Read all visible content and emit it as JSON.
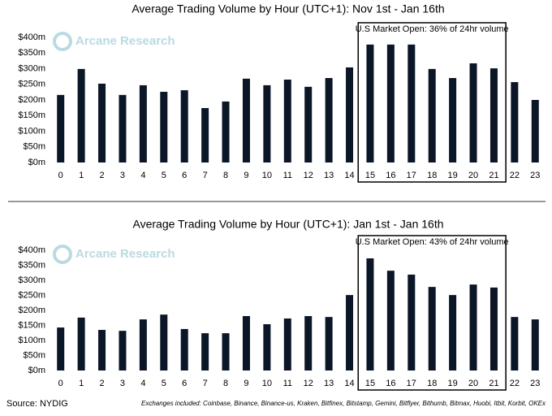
{
  "chart_data": [
    {
      "type": "bar",
      "title": "Average Trading Volume by Hour (UTC+1): Nov 1st - Jan 16th",
      "annotation": "U.S Market Open: 36% of 24hr volume",
      "watermark": "Arcane Research",
      "categories": [
        "0",
        "1",
        "2",
        "3",
        "4",
        "5",
        "6",
        "7",
        "8",
        "9",
        "10",
        "11",
        "12",
        "13",
        "14",
        "15",
        "16",
        "17",
        "18",
        "19",
        "20",
        "21",
        "22",
        "23"
      ],
      "values": [
        216,
        299,
        252,
        216,
        247,
        226,
        231,
        174,
        195,
        268,
        247,
        265,
        242,
        270,
        304,
        377,
        377,
        377,
        299,
        270,
        317,
        301,
        257,
        200
      ],
      "color": "#0b1626",
      "ylim": [
        0,
        400
      ],
      "yticks": [
        {
          "value": 0,
          "label": "$0m"
        },
        {
          "value": 50,
          "label": "$50m"
        },
        {
          "value": 100,
          "label": "$100m"
        },
        {
          "value": 150,
          "label": "$150m"
        },
        {
          "value": 200,
          "label": "$200m"
        },
        {
          "value": 250,
          "label": "$250m"
        },
        {
          "value": 300,
          "label": "$300m"
        },
        {
          "value": 350,
          "label": "$350m"
        },
        {
          "value": 400,
          "label": "$400m"
        }
      ]
    },
    {
      "type": "bar",
      "title": "Average Trading Volume by Hour (UTC+1): Jan 1st - Jan 16th",
      "annotation": "U.S Market Open: 43% of 24hr volume",
      "watermark": "Arcane Research",
      "categories": [
        "0",
        "1",
        "2",
        "3",
        "4",
        "5",
        "6",
        "7",
        "8",
        "9",
        "10",
        "11",
        "12",
        "13",
        "14",
        "15",
        "16",
        "17",
        "18",
        "19",
        "20",
        "21",
        "22",
        "23"
      ],
      "values": [
        143,
        176,
        135,
        132,
        170,
        186,
        138,
        124,
        124,
        181,
        154,
        173,
        181,
        178,
        251,
        373,
        332,
        319,
        278,
        251,
        286,
        276,
        178,
        170
      ],
      "color": "#0b1626",
      "ylim": [
        0,
        400
      ],
      "yticks": [
        {
          "value": 0,
          "label": "$0m"
        },
        {
          "value": 50,
          "label": "$50m"
        },
        {
          "value": 100,
          "label": "$100m"
        },
        {
          "value": 150,
          "label": "$150m"
        },
        {
          "value": 200,
          "label": "$200m"
        },
        {
          "value": 250,
          "label": "$250m"
        },
        {
          "value": 300,
          "label": "$300m"
        },
        {
          "value": 350,
          "label": "$350m"
        },
        {
          "value": 400,
          "label": "$400m"
        }
      ]
    }
  ],
  "source": "Source: NYDIG",
  "note": "Exchanges included: Coinbase, Binance, Binance-us, Kraken, Bitfinex, Bitstamp, Gemini, Bitflyer, Bithumb, Bitmax, Huobi, Itbit, Korbit, OKEx"
}
